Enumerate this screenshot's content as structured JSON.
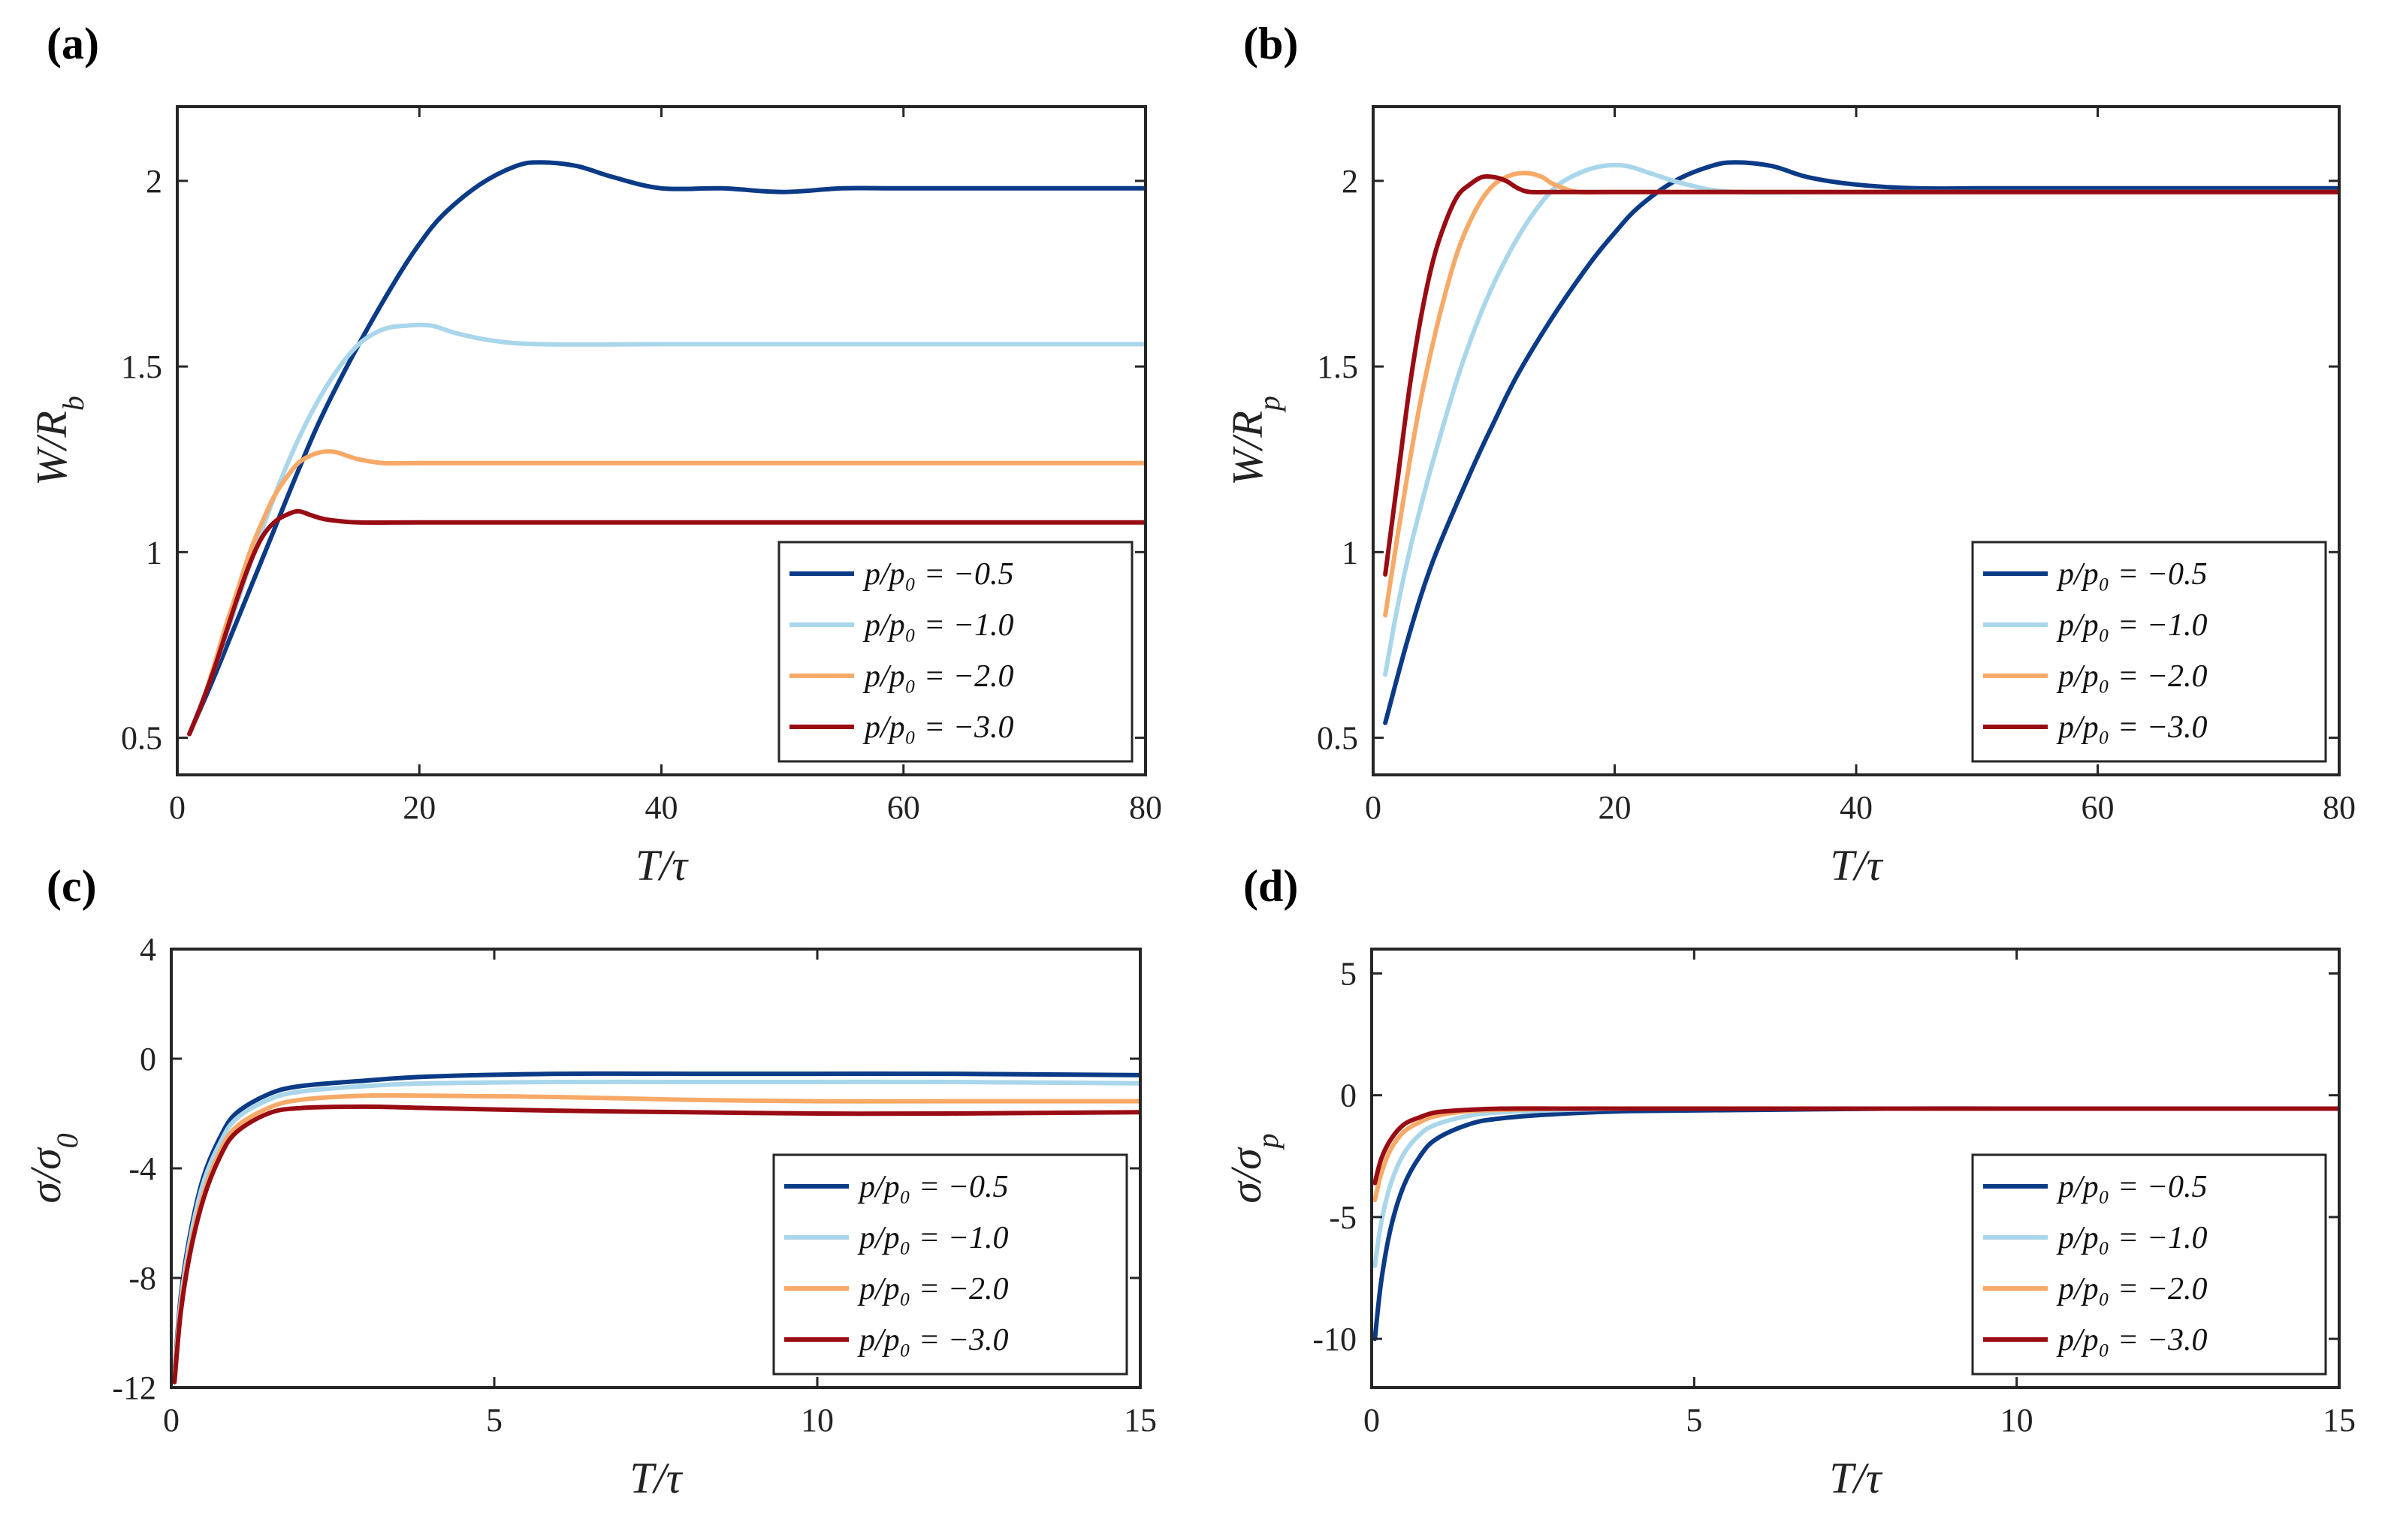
{
  "series_colors": {
    "p05": "#0b3a86",
    "p10": "#a9d6ea",
    "p20": "#f7a968",
    "p30": "#990c13"
  },
  "chart_data": [
    {
      "panel": "(a)",
      "type": "line",
      "xlabel": "T/τ",
      "ylabel": "W/R_b",
      "ylabel_main": "W/R",
      "ylabel_sub": "b",
      "xlim": [
        0,
        80
      ],
      "ylim": [
        0.4,
        2.2
      ],
      "xticks": [
        0,
        20,
        40,
        60,
        80
      ],
      "xtick_labels": [
        "0",
        "20",
        "40",
        "60",
        "80"
      ],
      "yticks": [
        0.5,
        1,
        1.5,
        2
      ],
      "ytick_labels": [
        "0.5",
        "1",
        "1.5",
        "2"
      ],
      "legend": [
        "p/p₀ = −0.5",
        "p/p₀ = −1.0",
        "p/p₀ = −2.0",
        "p/p₀ = −3.0"
      ],
      "legend_position": "bottom-right",
      "series": [
        {
          "name": "p/p₀ = −0.5",
          "color_key": "p05",
          "x": [
            1,
            3,
            5,
            8,
            10,
            12,
            15,
            18,
            20,
            22,
            25,
            28,
            30,
            33,
            36,
            40,
            45,
            50,
            55,
            60,
            70,
            80
          ],
          "y": [
            0.51,
            0.66,
            0.82,
            1.06,
            1.22,
            1.37,
            1.56,
            1.73,
            1.83,
            1.91,
            1.99,
            2.04,
            2.05,
            2.04,
            2.01,
            1.98,
            1.98,
            1.97,
            1.98,
            1.98,
            1.98,
            1.98
          ]
        },
        {
          "name": "p/p₀ = −1.0",
          "color_key": "p10",
          "x": [
            1,
            3,
            5,
            7,
            9,
            11,
            13,
            15,
            17,
            19,
            21,
            23,
            26,
            30,
            40,
            50,
            60,
            70,
            80
          ],
          "y": [
            0.51,
            0.68,
            0.87,
            1.06,
            1.23,
            1.37,
            1.48,
            1.56,
            1.6,
            1.61,
            1.61,
            1.59,
            1.57,
            1.56,
            1.56,
            1.56,
            1.56,
            1.56,
            1.56
          ]
        },
        {
          "name": "p/p₀ = −2.0",
          "color_key": "p20",
          "x": [
            1,
            2,
            3,
            4,
            5,
            6,
            7,
            8,
            9,
            10,
            11,
            12,
            13,
            14,
            15,
            17,
            20,
            30,
            40,
            60,
            80
          ],
          "y": [
            0.51,
            0.59,
            0.69,
            0.8,
            0.9,
            1.0,
            1.08,
            1.15,
            1.2,
            1.24,
            1.26,
            1.27,
            1.27,
            1.26,
            1.25,
            1.24,
            1.24,
            1.24,
            1.24,
            1.24,
            1.24
          ]
        },
        {
          "name": "p/p₀ = −3.0",
          "color_key": "p30",
          "x": [
            1,
            2,
            3,
            4,
            5,
            6,
            7,
            8,
            9,
            10,
            11,
            12,
            13,
            15,
            20,
            30,
            40,
            60,
            80
          ],
          "y": [
            0.51,
            0.59,
            0.68,
            0.78,
            0.88,
            0.97,
            1.04,
            1.08,
            1.1,
            1.11,
            1.1,
            1.09,
            1.085,
            1.08,
            1.08,
            1.08,
            1.08,
            1.08,
            1.08
          ]
        }
      ]
    },
    {
      "panel": "(b)",
      "type": "line",
      "xlabel": "T/τ",
      "ylabel": "W/R_p",
      "ylabel_main": "W/R",
      "ylabel_sub": "p",
      "xlim": [
        0,
        80
      ],
      "ylim": [
        0.4,
        2.2
      ],
      "xticks": [
        0,
        20,
        40,
        60,
        80
      ],
      "xtick_labels": [
        "0",
        "20",
        "40",
        "60",
        "80"
      ],
      "yticks": [
        0.5,
        1,
        1.5,
        2
      ],
      "ytick_labels": [
        "0.5",
        "1",
        "1.5",
        "2"
      ],
      "legend": [
        "p/p₀ = −0.5",
        "p/p₀ = −1.0",
        "p/p₀ = −2.0",
        "p/p₀ = −3.0"
      ],
      "legend_position": "bottom-right",
      "series": [
        {
          "name": "p/p₀ = −0.5",
          "color_key": "p05",
          "x": [
            1,
            3,
            5,
            8,
            10,
            12,
            15,
            18,
            20,
            22,
            25,
            28,
            30,
            33,
            36,
            40,
            45,
            50,
            55,
            60,
            70,
            80
          ],
          "y": [
            0.54,
            0.78,
            0.98,
            1.21,
            1.35,
            1.48,
            1.64,
            1.78,
            1.86,
            1.93,
            2.0,
            2.04,
            2.05,
            2.04,
            2.01,
            1.99,
            1.98,
            1.98,
            1.98,
            1.98,
            1.98,
            1.98
          ]
        },
        {
          "name": "p/p₀ = −1.0",
          "color_key": "p10",
          "x": [
            1,
            2,
            3,
            4,
            5,
            7,
            9,
            11,
            13,
            15,
            17,
            19,
            21,
            23,
            26,
            30,
            40,
            60,
            80
          ],
          "y": [
            0.67,
            0.85,
            1.0,
            1.13,
            1.25,
            1.47,
            1.65,
            1.79,
            1.9,
            1.98,
            2.02,
            2.04,
            2.04,
            2.02,
            1.99,
            1.97,
            1.97,
            1.97,
            1.97
          ]
        },
        {
          "name": "p/p₀ = −2.0",
          "color_key": "p20",
          "x": [
            1,
            2,
            3,
            4,
            5,
            6,
            7,
            8,
            9,
            10,
            11,
            12,
            13,
            14,
            15,
            17,
            20,
            30,
            40,
            60,
            80
          ],
          "y": [
            0.83,
            1.04,
            1.24,
            1.42,
            1.57,
            1.7,
            1.81,
            1.89,
            1.95,
            1.99,
            2.01,
            2.02,
            2.02,
            2.01,
            1.99,
            1.97,
            1.97,
            1.97,
            1.97,
            1.97,
            1.97
          ]
        },
        {
          "name": "p/p₀ = −3.0",
          "color_key": "p30",
          "x": [
            1,
            2,
            3,
            4,
            5,
            6,
            7,
            8,
            9,
            10,
            11,
            12,
            13,
            15,
            20,
            30,
            40,
            60,
            80
          ],
          "y": [
            0.94,
            1.19,
            1.44,
            1.64,
            1.79,
            1.89,
            1.96,
            1.99,
            2.01,
            2.01,
            2.0,
            1.98,
            1.97,
            1.97,
            1.97,
            1.97,
            1.97,
            1.97,
            1.97
          ]
        }
      ]
    },
    {
      "panel": "(c)",
      "type": "line",
      "xlabel": "T/τ",
      "ylabel": "σ/σ_0",
      "ylabel_main": "σ/σ",
      "ylabel_sub": "0",
      "xlim": [
        0,
        15
      ],
      "ylim": [
        -12,
        4
      ],
      "xticks": [
        0,
        5,
        10,
        15
      ],
      "xtick_labels": [
        "0",
        "5",
        "10",
        "15"
      ],
      "yticks": [
        -12,
        -8,
        -4,
        0,
        4
      ],
      "ytick_labels": [
        "-12",
        "-8",
        "-4",
        "0",
        "4"
      ],
      "legend": [
        "p/p₀ = −0.5",
        "p/p₀ = −1.0",
        "p/p₀ = −2.0",
        "p/p₀ = −3.0"
      ],
      "legend_position": "bottom-right",
      "series": [
        {
          "name": "p/p₀ = −0.5",
          "color_key": "p05",
          "x": [
            0.05,
            0.15,
            0.3,
            0.5,
            0.75,
            1.0,
            1.5,
            2.0,
            3.0,
            4.0,
            6.0,
            8.0,
            10.0,
            12.0,
            15.0
          ],
          "y": [
            -11.5,
            -8.6,
            -6.3,
            -4.3,
            -2.9,
            -2.0,
            -1.3,
            -1.0,
            -0.8,
            -0.65,
            -0.55,
            -0.55,
            -0.55,
            -0.55,
            -0.6
          ]
        },
        {
          "name": "p/p₀ = −1.0",
          "color_key": "p10",
          "x": [
            0.05,
            0.15,
            0.3,
            0.5,
            0.75,
            1.0,
            1.5,
            2.0,
            3.0,
            4.0,
            6.0,
            8.0,
            10.0,
            12.0,
            15.0
          ],
          "y": [
            -11.6,
            -8.8,
            -6.5,
            -4.5,
            -3.1,
            -2.2,
            -1.5,
            -1.2,
            -1.0,
            -0.9,
            -0.85,
            -0.85,
            -0.85,
            -0.85,
            -0.9
          ]
        },
        {
          "name": "p/p₀ = −2.0",
          "color_key": "p20",
          "x": [
            0.05,
            0.15,
            0.3,
            0.5,
            0.75,
            1.0,
            1.5,
            2.0,
            3.0,
            4.0,
            6.0,
            8.0,
            10.0,
            12.0,
            15.0
          ],
          "y": [
            -11.7,
            -9.0,
            -6.8,
            -4.9,
            -3.4,
            -2.5,
            -1.8,
            -1.5,
            -1.35,
            -1.35,
            -1.4,
            -1.5,
            -1.55,
            -1.55,
            -1.55
          ]
        },
        {
          "name": "p/p₀ = −3.0",
          "color_key": "p30",
          "x": [
            0.05,
            0.15,
            0.3,
            0.5,
            0.75,
            1.0,
            1.5,
            2.0,
            3.0,
            4.0,
            6.0,
            8.0,
            10.0,
            12.0,
            15.0
          ],
          "y": [
            -11.8,
            -9.2,
            -7.0,
            -5.1,
            -3.6,
            -2.7,
            -2.0,
            -1.8,
            -1.75,
            -1.8,
            -1.9,
            -1.95,
            -2.0,
            -2.0,
            -1.95
          ]
        }
      ]
    },
    {
      "panel": "(d)",
      "type": "line",
      "xlabel": "T/τ",
      "ylabel": "σ/σ_p",
      "ylabel_main": "σ/σ",
      "ylabel_sub": "p",
      "xlim": [
        0,
        15
      ],
      "ylim": [
        -12,
        6
      ],
      "xticks": [
        0,
        5,
        10,
        15
      ],
      "xtick_labels": [
        "0",
        "5",
        "10",
        "15"
      ],
      "yticks": [
        -10,
        -5,
        0,
        5
      ],
      "ytick_labels": [
        "-10",
        "-5",
        "0",
        "5"
      ],
      "legend": [
        "p/p₀ = −0.5",
        "p/p₀ = −1.0",
        "p/p₀ = −2.0",
        "p/p₀ = −3.0"
      ],
      "legend_position": "bottom-right",
      "series": [
        {
          "name": "p/p₀ = −0.5",
          "color_key": "p05",
          "x": [
            0.05,
            0.15,
            0.3,
            0.5,
            0.75,
            1.0,
            1.5,
            2.0,
            3.0,
            4.0,
            6.0,
            8.0,
            10.0,
            12.0,
            15.0
          ],
          "y": [
            -10.0,
            -7.6,
            -5.4,
            -3.7,
            -2.5,
            -1.8,
            -1.2,
            -0.95,
            -0.75,
            -0.65,
            -0.6,
            -0.55,
            -0.55,
            -0.55,
            -0.55
          ]
        },
        {
          "name": "p/p₀ = −1.0",
          "color_key": "p10",
          "x": [
            0.05,
            0.15,
            0.3,
            0.5,
            0.75,
            1.0,
            1.5,
            2.0,
            3.0,
            4.0,
            6.0,
            8.0,
            10.0,
            12.0,
            15.0
          ],
          "y": [
            -7.0,
            -5.2,
            -3.6,
            -2.4,
            -1.6,
            -1.2,
            -0.85,
            -0.7,
            -0.6,
            -0.55,
            -0.55,
            -0.55,
            -0.55,
            -0.55,
            -0.55
          ]
        },
        {
          "name": "p/p₀ = −2.0",
          "color_key": "p20",
          "x": [
            0.05,
            0.15,
            0.3,
            0.5,
            0.75,
            1.0,
            1.5,
            2.0,
            3.0,
            4.0,
            6.0,
            8.0,
            10.0,
            12.0,
            15.0
          ],
          "y": [
            -4.3,
            -3.2,
            -2.2,
            -1.5,
            -1.1,
            -0.85,
            -0.65,
            -0.6,
            -0.55,
            -0.55,
            -0.55,
            -0.55,
            -0.55,
            -0.55,
            -0.55
          ]
        },
        {
          "name": "p/p₀ = −3.0",
          "color_key": "p30",
          "x": [
            0.05,
            0.15,
            0.3,
            0.5,
            0.75,
            1.0,
            1.5,
            2.0,
            3.0,
            4.0,
            6.0,
            8.0,
            10.0,
            12.0,
            15.0
          ],
          "y": [
            -3.6,
            -2.6,
            -1.8,
            -1.2,
            -0.9,
            -0.7,
            -0.6,
            -0.55,
            -0.55,
            -0.55,
            -0.55,
            -0.55,
            -0.55,
            -0.55,
            -0.55
          ]
        }
      ]
    }
  ]
}
